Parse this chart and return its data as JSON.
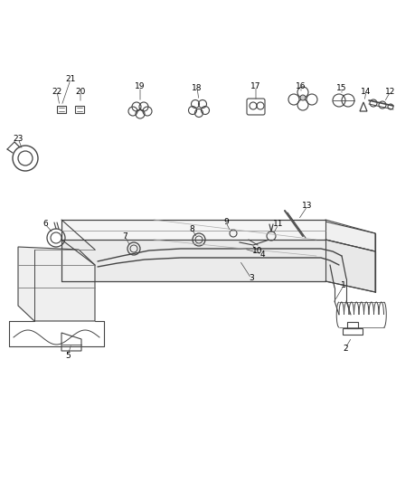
{
  "bg_color": "#ffffff",
  "figsize": [
    4.38,
    5.33
  ],
  "dpi": 100,
  "lc": "#444444",
  "tc": "#000000",
  "fs": 6.0
}
